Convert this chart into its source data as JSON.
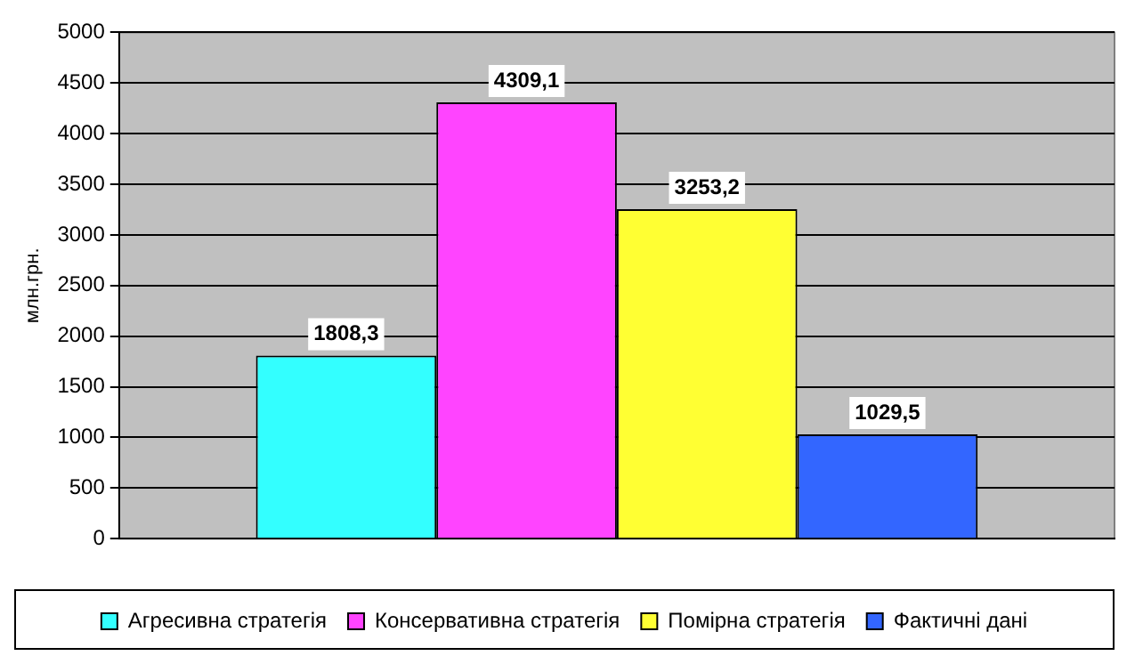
{
  "chart_data": {
    "type": "bar",
    "ylabel": "млн.грн.",
    "categories": [
      null
    ],
    "series": [
      {
        "name": "Агресивна стратегія",
        "color": "#33ffff",
        "values": [
          1808.3
        ],
        "value_labels": [
          "1808,3"
        ]
      },
      {
        "name": "Консервативна стратегія",
        "color": "#ff44ff",
        "values": [
          4309.1
        ],
        "value_labels": [
          "4309,1"
        ]
      },
      {
        "name": "Помірна стратегія",
        "color": "#ffff33",
        "values": [
          3253.2
        ],
        "value_labels": [
          "3253,2"
        ]
      },
      {
        "name": "Фактичні дані",
        "color": "#3366ff",
        "values": [
          1029.5
        ],
        "value_labels": [
          "1029,5"
        ]
      }
    ],
    "ylim": [
      0,
      5000
    ],
    "yticks": [
      0,
      500,
      1000,
      1500,
      2000,
      2500,
      3000,
      3500,
      4000,
      4500,
      5000
    ],
    "grid": "y",
    "legend": "bottom"
  }
}
